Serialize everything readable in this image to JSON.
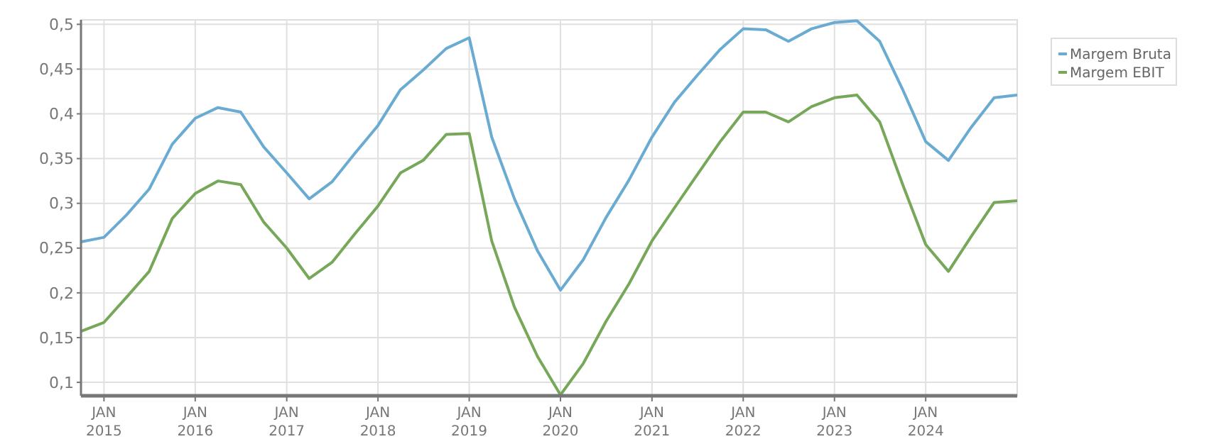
{
  "chart_data": {
    "type": "line",
    "x": [
      "2014-10-01",
      "2015-01-01",
      "2015-04-01",
      "2015-07-01",
      "2015-10-01",
      "2016-01-01",
      "2016-04-01",
      "2016-07-01",
      "2016-10-01",
      "2017-01-01",
      "2017-04-01",
      "2017-07-01",
      "2017-10-01",
      "2018-01-01",
      "2018-04-01",
      "2018-07-01",
      "2018-10-01",
      "2019-01-01",
      "2019-04-01",
      "2019-07-01",
      "2019-10-01",
      "2020-01-01",
      "2020-04-01",
      "2020-07-01",
      "2020-10-01",
      "2021-01-01",
      "2021-04-01",
      "2021-07-01",
      "2021-10-01",
      "2022-01-01",
      "2022-04-01",
      "2022-07-01",
      "2022-10-01",
      "2023-01-01",
      "2023-04-01",
      "2023-07-01",
      "2023-10-01",
      "2024-01-01",
      "2024-04-01",
      "2024-07-01",
      "2024-10-01",
      "2025-01-01"
    ],
    "series": [
      {
        "name": "Margem Bruta",
        "color": "#6aabd2",
        "values": [
          0.257,
          0.262,
          0.287,
          0.316,
          0.366,
          0.395,
          0.407,
          0.402,
          0.363,
          0.334,
          0.305,
          0.324,
          0.356,
          0.387,
          0.427,
          0.449,
          0.473,
          0.485,
          0.374,
          0.305,
          0.247,
          0.203,
          0.237,
          0.284,
          0.326,
          0.374,
          0.413,
          0.443,
          0.472,
          0.495,
          0.494,
          0.481,
          0.495,
          0.502,
          0.504,
          0.481,
          0.427,
          0.369,
          0.348,
          0.385,
          0.418,
          0.421
        ]
      },
      {
        "name": "Margem EBIT",
        "color": "#77a85a",
        "values": [
          0.157,
          0.167,
          0.195,
          0.224,
          0.283,
          0.311,
          0.325,
          0.321,
          0.279,
          0.25,
          0.216,
          0.234,
          0.266,
          0.297,
          0.334,
          0.348,
          0.377,
          0.378,
          0.258,
          0.184,
          0.129,
          0.086,
          0.121,
          0.168,
          0.21,
          0.258,
          0.295,
          0.332,
          0.369,
          0.402,
          0.402,
          0.391,
          0.408,
          0.418,
          0.421,
          0.391,
          0.321,
          0.254,
          0.224,
          0.263,
          0.301,
          0.303
        ]
      }
    ],
    "xlim": [
      "2014-10-01",
      "2025-01-01"
    ],
    "xticks": [
      {
        "value": "2015-01-01",
        "label": "JAN 2015"
      },
      {
        "value": "2016-01-01",
        "label": "JAN 2016"
      },
      {
        "value": "2017-01-01",
        "label": "JAN 2017"
      },
      {
        "value": "2018-01-01",
        "label": "JAN 2018"
      },
      {
        "value": "2019-01-01",
        "label": "JAN 2019"
      },
      {
        "value": "2020-01-01",
        "label": "JAN 2020"
      },
      {
        "value": "2021-01-01",
        "label": "JAN 2021"
      },
      {
        "value": "2022-01-01",
        "label": "JAN 2022"
      },
      {
        "value": "2023-01-01",
        "label": "JAN 2023"
      },
      {
        "value": "2024-01-01",
        "label": "JAN 2024"
      }
    ],
    "ylim": [
      0.085,
      0.505
    ],
    "yticks": [
      {
        "value": 0.1,
        "label": "0,1"
      },
      {
        "value": 0.15,
        "label": "0,15"
      },
      {
        "value": 0.2,
        "label": "0,2"
      },
      {
        "value": 0.25,
        "label": "0,25"
      },
      {
        "value": 0.3,
        "label": "0,3"
      },
      {
        "value": 0.35,
        "label": "0,35"
      },
      {
        "value": 0.4,
        "label": "0,4"
      },
      {
        "value": 0.45,
        "label": "0,45"
      },
      {
        "value": 0.5,
        "label": "0,5"
      }
    ],
    "grid": true,
    "legend": "top right",
    "marker": "none",
    "line_style": "solid"
  }
}
